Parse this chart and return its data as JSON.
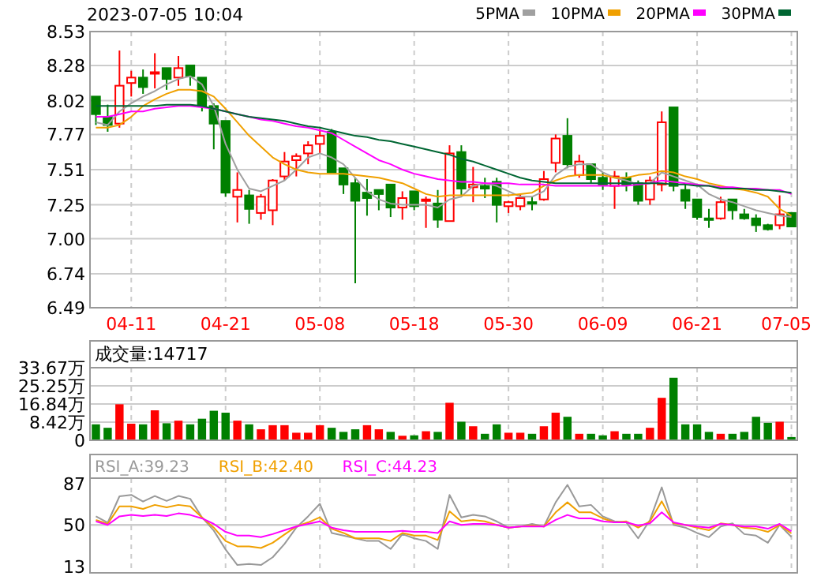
{
  "chart_data": [
    {
      "type": "candlestick",
      "title": "2023-07-05 10:04",
      "categories": [
        null,
        null,
        null,
        "04-11",
        null,
        null,
        null,
        null,
        null,
        null,
        null,
        "04-21",
        null,
        null,
        null,
        null,
        null,
        null,
        null,
        "05-08",
        null,
        null,
        null,
        null,
        null,
        null,
        null,
        "05-18",
        null,
        null,
        null,
        null,
        null,
        null,
        null,
        "05-30",
        null,
        null,
        null,
        null,
        null,
        null,
        null,
        "06-09",
        null,
        null,
        null,
        null,
        null,
        null,
        null,
        "06-21",
        null,
        null,
        null,
        null,
        null,
        null,
        null,
        "07-05"
      ],
      "ohlc": [
        [
          8.05,
          8.05,
          7.84,
          7.92
        ],
        [
          7.9,
          7.99,
          7.79,
          7.84
        ],
        [
          7.85,
          8.39,
          7.82,
          8.13
        ],
        [
          8.15,
          8.24,
          8.05,
          8.19
        ],
        [
          8.19,
          8.25,
          8.07,
          8.12
        ],
        [
          8.22,
          8.37,
          8.11,
          8.23
        ],
        [
          8.26,
          8.26,
          8.1,
          8.18
        ],
        [
          8.19,
          8.35,
          8.13,
          8.26
        ],
        [
          8.28,
          8.28,
          8.13,
          8.2
        ],
        [
          8.19,
          8.19,
          7.94,
          7.98
        ],
        [
          7.98,
          8.0,
          7.66,
          7.85
        ],
        [
          7.87,
          7.87,
          7.31,
          7.34
        ],
        [
          7.31,
          7.49,
          7.12,
          7.36
        ],
        [
          7.32,
          7.36,
          7.11,
          7.22
        ],
        [
          7.19,
          7.33,
          7.14,
          7.31
        ],
        [
          7.21,
          7.44,
          7.1,
          7.43
        ],
        [
          7.46,
          7.64,
          7.43,
          7.57
        ],
        [
          7.58,
          7.63,
          7.46,
          7.61
        ],
        [
          7.63,
          7.72,
          7.55,
          7.69
        ],
        [
          7.7,
          7.81,
          7.63,
          7.76
        ],
        [
          7.79,
          7.81,
          7.49,
          7.49
        ],
        [
          7.52,
          7.52,
          7.33,
          7.4
        ],
        [
          7.41,
          7.45,
          6.67,
          7.28
        ],
        [
          7.34,
          7.44,
          7.17,
          7.3
        ],
        [
          7.36,
          7.36,
          7.21,
          7.33
        ],
        [
          7.4,
          7.4,
          7.16,
          7.23
        ],
        [
          7.23,
          7.35,
          7.14,
          7.3
        ],
        [
          7.35,
          7.35,
          7.21,
          7.24
        ],
        [
          7.28,
          7.31,
          7.08,
          7.29
        ],
        [
          7.26,
          7.36,
          7.08,
          7.14
        ],
        [
          7.13,
          7.69,
          7.13,
          7.63
        ],
        [
          7.64,
          7.69,
          7.32,
          7.37
        ],
        [
          7.38,
          7.53,
          7.27,
          7.4
        ],
        [
          7.39,
          7.45,
          7.3,
          7.37
        ],
        [
          7.42,
          7.45,
          7.12,
          7.25
        ],
        [
          7.24,
          7.28,
          7.19,
          7.27
        ],
        [
          7.24,
          7.33,
          7.21,
          7.3
        ],
        [
          7.27,
          7.31,
          7.21,
          7.26
        ],
        [
          7.29,
          7.5,
          7.28,
          7.44
        ],
        [
          7.56,
          7.77,
          7.49,
          7.74
        ],
        [
          7.76,
          7.89,
          7.52,
          7.55
        ],
        [
          7.47,
          7.62,
          7.45,
          7.57
        ],
        [
          7.55,
          7.55,
          7.41,
          7.44
        ],
        [
          7.45,
          7.49,
          7.36,
          7.4
        ],
        [
          7.39,
          7.5,
          7.22,
          7.46
        ],
        [
          7.45,
          7.49,
          7.35,
          7.4
        ],
        [
          7.41,
          7.43,
          7.25,
          7.28
        ],
        [
          7.29,
          7.46,
          7.25,
          7.43
        ],
        [
          7.4,
          7.94,
          7.35,
          7.86
        ],
        [
          7.97,
          7.97,
          7.35,
          7.39
        ],
        [
          7.36,
          7.4,
          7.22,
          7.28
        ],
        [
          7.29,
          7.29,
          7.14,
          7.16
        ],
        [
          7.15,
          7.22,
          7.08,
          7.14
        ],
        [
          7.15,
          7.31,
          7.14,
          7.27
        ],
        [
          7.29,
          7.29,
          7.14,
          7.21
        ],
        [
          7.18,
          7.22,
          7.14,
          7.15
        ],
        [
          7.15,
          7.18,
          7.05,
          7.1
        ],
        [
          7.1,
          7.11,
          7.06,
          7.07
        ],
        [
          7.1,
          7.32,
          7.07,
          7.18
        ],
        [
          7.19,
          7.19,
          7.09,
          7.09
        ]
      ],
      "series": [
        {
          "type": "line",
          "name": "5PMA",
          "color": "#a0a0a0",
          "values": [
            7.86,
            7.84,
            7.94,
            8.0,
            8.05,
            8.09,
            8.14,
            8.18,
            8.2,
            8.14,
            7.98,
            7.7,
            7.51,
            7.37,
            7.35,
            7.39,
            7.43,
            7.51,
            7.6,
            7.63,
            7.6,
            7.55,
            7.45,
            7.35,
            7.29,
            7.26,
            7.25,
            7.25,
            7.25,
            7.23,
            7.29,
            7.31,
            7.39,
            7.41,
            7.39,
            7.35,
            7.31,
            7.31,
            7.35,
            7.47,
            7.53,
            7.55,
            7.55,
            7.49,
            7.45,
            7.43,
            7.4,
            7.41,
            7.49,
            7.46,
            7.43,
            7.4,
            7.33,
            7.29,
            7.27,
            7.24,
            7.21,
            7.19,
            7.17,
            7.16
          ]
        },
        {
          "type": "line",
          "name": "10PMA",
          "color": "#f0a000",
          "values": [
            7.82,
            7.82,
            7.84,
            7.9,
            7.98,
            8.03,
            8.07,
            8.1,
            8.1,
            8.09,
            8.05,
            7.96,
            7.86,
            7.76,
            7.68,
            7.6,
            7.55,
            7.51,
            7.49,
            7.48,
            7.48,
            7.48,
            7.47,
            7.46,
            7.45,
            7.43,
            7.41,
            7.37,
            7.33,
            7.31,
            7.32,
            7.32,
            7.32,
            7.32,
            7.32,
            7.32,
            7.33,
            7.34,
            7.39,
            7.43,
            7.46,
            7.47,
            7.47,
            7.47,
            7.45,
            7.45,
            7.47,
            7.48,
            7.5,
            7.49,
            7.46,
            7.44,
            7.41,
            7.39,
            7.37,
            7.36,
            7.34,
            7.31,
            7.22,
            7.17
          ]
        },
        {
          "type": "line",
          "name": "20PMA",
          "color": "#ff00ff",
          "values": [
            7.9,
            7.9,
            7.92,
            7.94,
            7.94,
            7.96,
            7.97,
            7.98,
            7.98,
            7.97,
            7.96,
            7.94,
            7.92,
            7.9,
            7.88,
            7.87,
            7.85,
            7.83,
            7.82,
            7.8,
            7.78,
            7.73,
            7.68,
            7.63,
            7.58,
            7.55,
            7.51,
            7.48,
            7.46,
            7.44,
            7.43,
            7.42,
            7.42,
            7.41,
            7.41,
            7.41,
            7.4,
            7.4,
            7.4,
            7.39,
            7.39,
            7.39,
            7.39,
            7.39,
            7.39,
            7.39,
            7.4,
            7.41,
            7.43,
            7.42,
            7.41,
            7.4,
            7.39,
            7.38,
            7.38,
            7.37,
            7.37,
            7.36,
            7.36,
            7.33
          ]
        },
        {
          "type": "line",
          "name": "30PMA",
          "color": "#006633",
          "values": [
            7.98,
            7.98,
            7.98,
            7.98,
            7.98,
            7.98,
            7.99,
            7.99,
            7.99,
            7.98,
            7.96,
            7.94,
            7.92,
            7.9,
            7.89,
            7.88,
            7.87,
            7.85,
            7.83,
            7.82,
            7.8,
            7.78,
            7.76,
            7.75,
            7.73,
            7.72,
            7.7,
            7.68,
            7.66,
            7.64,
            7.62,
            7.59,
            7.57,
            7.54,
            7.51,
            7.48,
            7.45,
            7.43,
            7.42,
            7.41,
            7.41,
            7.41,
            7.41,
            7.41,
            7.41,
            7.41,
            7.41,
            7.41,
            7.41,
            7.4,
            7.4,
            7.39,
            7.39,
            7.37,
            7.37,
            7.37,
            7.36,
            7.36,
            7.35,
            7.34
          ]
        }
      ],
      "ylim": [
        6.49,
        8.53
      ],
      "yticks": [
        {
          "value": 6.49,
          "label": "6.49"
        },
        {
          "value": 6.74,
          "label": "6.74"
        },
        {
          "value": 7,
          "label": "7.00"
        },
        {
          "value": 7.25,
          "label": "7.25"
        },
        {
          "value": 7.51,
          "label": "7.51"
        },
        {
          "value": 7.77,
          "label": "7.77"
        },
        {
          "value": 8.02,
          "label": "8.02"
        },
        {
          "value": 8.28,
          "label": "8.28"
        },
        {
          "value": 8.53,
          "label": "8.53"
        }
      ],
      "grid": true,
      "legend": "top right"
    },
    {
      "type": "bar",
      "annotations": [
        "成交量:14717"
      ],
      "categories": [
        null,
        null,
        null,
        null,
        null,
        null,
        null,
        null,
        null,
        null,
        null,
        null,
        null,
        null,
        null,
        null,
        null,
        null,
        null,
        null,
        null,
        null,
        null,
        null,
        null,
        null,
        null,
        null,
        null,
        null,
        null,
        null,
        null,
        null,
        null,
        null,
        null,
        null,
        null,
        null,
        null,
        null,
        null,
        null,
        null,
        null,
        null,
        null,
        null,
        null,
        null,
        null,
        null,
        null,
        null,
        null,
        null,
        null,
        null,
        null
      ],
      "values": [
        7.4,
        5.8,
        16.7,
        7.7,
        7.4,
        13.9,
        7.9,
        9.1,
        7.4,
        10.0,
        13.7,
        12.8,
        9.1,
        7.4,
        5.1,
        7.0,
        7.0,
        3.5,
        3.5,
        7.0,
        5.8,
        3.9,
        5.1,
        7.0,
        5.1,
        3.9,
        2.1,
        2.3,
        4.2,
        3.9,
        17.4,
        8.6,
        6.5,
        3.0,
        7.4,
        3.5,
        3.5,
        3.0,
        6.5,
        12.8,
        10.9,
        3.0,
        3.0,
        2.3,
        4.2,
        3.0,
        3.0,
        5.8,
        19.7,
        29.0,
        7.4,
        7.4,
        3.9,
        3.0,
        3.0,
        3.9,
        10.9,
        8.1,
        8.6,
        1.5
      ],
      "colors": [
        "#008000",
        "#008000",
        "#ff0000",
        "#ff0000",
        "#008000",
        "#ff0000",
        "#008000",
        "#ff0000",
        "#008000",
        "#008000",
        "#008000",
        "#008000",
        "#ff0000",
        "#008000",
        "#ff0000",
        "#ff0000",
        "#ff0000",
        "#ff0000",
        "#ff0000",
        "#ff0000",
        "#008000",
        "#008000",
        "#008000",
        "#ff0000",
        "#ff0000",
        "#008000",
        "#ff0000",
        "#008000",
        "#ff0000",
        "#008000",
        "#ff0000",
        "#008000",
        "#ff0000",
        "#008000",
        "#008000",
        "#ff0000",
        "#ff0000",
        "#008000",
        "#ff0000",
        "#ff0000",
        "#008000",
        "#ff0000",
        "#008000",
        "#008000",
        "#ff0000",
        "#008000",
        "#008000",
        "#ff0000",
        "#ff0000",
        "#008000",
        "#008000",
        "#008000",
        "#008000",
        "#ff0000",
        "#008000",
        "#008000",
        "#008000",
        "#008000",
        "#ff0000",
        "#008000"
      ],
      "ylim": [
        0,
        33.67
      ],
      "yticks": [
        0,
        {
          "value": 8.42,
          "label": "8.42万"
        },
        {
          "value": 16.84,
          "label": "16.84万"
        },
        {
          "value": 25.25,
          "label": "25.25万"
        },
        {
          "value": 33.67,
          "label": "33.67万"
        }
      ],
      "grid": true,
      "tick_labels": "y"
    },
    {
      "type": "line",
      "categories": [
        null,
        null,
        null,
        null,
        null,
        null,
        null,
        null,
        null,
        null,
        null,
        null,
        null,
        null,
        null,
        null,
        null,
        null,
        null,
        null,
        null,
        null,
        null,
        null,
        null,
        null,
        null,
        null,
        null,
        null,
        null,
        null,
        null,
        null,
        null,
        null,
        null,
        null,
        null,
        null,
        null,
        null,
        null,
        null,
        null,
        null,
        null,
        null,
        null,
        null,
        null,
        null,
        null,
        null,
        null,
        null,
        null,
        null,
        null,
        null
      ],
      "series": [
        {
          "name": "RSI_A:39.23",
          "color": "#999999",
          "values": [
            57.7,
            52,
            75.7,
            77,
            71,
            76,
            71.6,
            76,
            73.5,
            56.8,
            45,
            28,
            14,
            15,
            14,
            21,
            33,
            47.6,
            57.7,
            69,
            42.8,
            40.4,
            38,
            35.6,
            35.6,
            28.4,
            41.8,
            38,
            35.6,
            28.4,
            77,
            56.8,
            59,
            57.7,
            53.2,
            47.6,
            48.6,
            50.9,
            48.6,
            70.3,
            86,
            66.7,
            68,
            57.7,
            53.2,
            52.3,
            38,
            54.5,
            83.8,
            50,
            47.6,
            42.8,
            39,
            48.6,
            51.4,
            41.8,
            40.4,
            34,
            50,
            39.23
          ]
        },
        {
          "name": "RSI_B:42.40",
          "color": "#f0a000",
          "values": [
            54.5,
            51,
            66.7,
            66.7,
            64.4,
            68,
            65.8,
            68,
            66.7,
            56.8,
            47.6,
            35.6,
            30.8,
            30.8,
            29.3,
            34,
            41.4,
            48.6,
            52.3,
            56.8,
            46.6,
            42.8,
            38,
            38,
            38,
            35.6,
            42.8,
            40.4,
            40.4,
            36.5,
            62.2,
            53.2,
            54.5,
            53.2,
            50,
            47.6,
            48.6,
            49.5,
            48.6,
            61.3,
            70.3,
            61.3,
            61.3,
            55.9,
            52.3,
            53.2,
            47.6,
            53.2,
            71.2,
            51.4,
            50,
            47.6,
            45.2,
            51.4,
            50,
            47.6,
            46.6,
            43.8,
            50,
            42.4
          ]
        },
        {
          "name": "RSI_C:44.23",
          "color": "#ff00ff",
          "values": [
            53.2,
            50,
            57.7,
            59,
            58,
            59,
            58,
            60.4,
            59,
            55.9,
            50.9,
            43.8,
            40.4,
            40.4,
            39,
            41.8,
            45.2,
            48.6,
            50.9,
            53.2,
            47.6,
            45.2,
            43.8,
            43.8,
            43.8,
            43.8,
            44.7,
            43.8,
            43.8,
            42.8,
            53.2,
            50,
            50.9,
            50.9,
            50,
            47.6,
            48.6,
            48.6,
            48.6,
            54.5,
            59,
            55.9,
            55.9,
            53.2,
            52.3,
            52.3,
            49.5,
            51.4,
            61.3,
            52.3,
            50,
            48.6,
            47.6,
            50.9,
            50,
            48.6,
            48.6,
            46.6,
            50.9,
            44.23
          ]
        }
      ],
      "ylim": [
        7,
        92
      ],
      "yticks": [
        13,
        50,
        87
      ],
      "grid": "x",
      "ref_lines": [
        {
          "axis": "y",
          "value": 50,
          "color": "#cccccc"
        }
      ],
      "legend": "top left",
      "tick_labels": "y"
    }
  ]
}
